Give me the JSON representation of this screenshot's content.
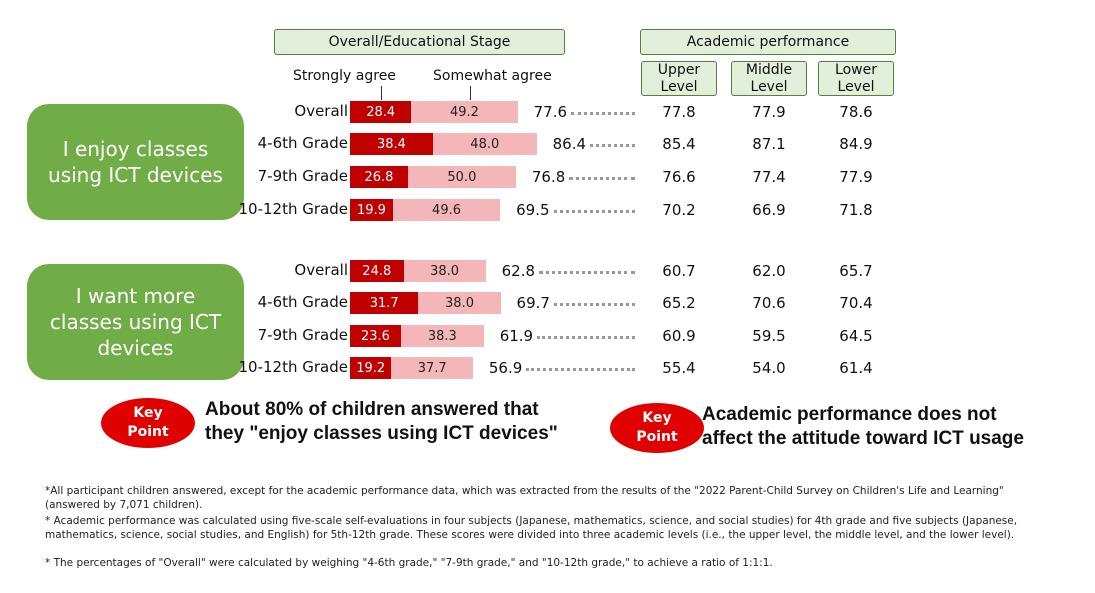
{
  "headers": {
    "stage": "Overall/Educational Stage",
    "academic": "Academic performance",
    "levels": [
      "Upper Level",
      "Middle Level",
      "Lower Level"
    ],
    "strongly": "Strongly agree",
    "somewhat": "Somewhat agree"
  },
  "groups": [
    {
      "title": "I enjoy classes using ICT devices",
      "rows": [
        {
          "label": "Overall",
          "strongly": "28.4",
          "somewhat": "49.2",
          "total": "77.6",
          "levels": [
            "77.8",
            "77.9",
            "78.6"
          ]
        },
        {
          "label": "4-6th Grade",
          "strongly": "38.4",
          "somewhat": "48.0",
          "total": "86.4",
          "levels": [
            "85.4",
            "87.1",
            "84.9"
          ]
        },
        {
          "label": "7-9th Grade",
          "strongly": "26.8",
          "somewhat": "50.0",
          "total": "76.8",
          "levels": [
            "76.6",
            "77.4",
            "77.9"
          ]
        },
        {
          "label": "10-12th Grade",
          "strongly": "19.9",
          "somewhat": "49.6",
          "total": "69.5",
          "levels": [
            "70.2",
            "66.9",
            "71.8"
          ]
        }
      ]
    },
    {
      "title": "I want more classes using ICT devices",
      "rows": [
        {
          "label": "Overall",
          "strongly": "24.8",
          "somewhat": "38.0",
          "total": "62.8",
          "levels": [
            "60.7",
            "62.0",
            "65.7"
          ]
        },
        {
          "label": "4-6th Grade",
          "strongly": "31.7",
          "somewhat": "38.0",
          "total": "69.7",
          "levels": [
            "65.2",
            "70.6",
            "70.4"
          ]
        },
        {
          "label": "7-9th Grade",
          "strongly": "23.6",
          "somewhat": "38.3",
          "total": "61.9",
          "levels": [
            "60.9",
            "59.5",
            "64.5"
          ]
        },
        {
          "label": "10-12th Grade",
          "strongly": "19.2",
          "somewhat": "37.7",
          "total": "56.9",
          "levels": [
            "55.4",
            "54.0",
            "61.4"
          ]
        }
      ]
    }
  ],
  "key_points": [
    {
      "badge": "Key Point",
      "text": "About 80% of children answered that\nthey \"enjoy classes using ICT devices\""
    },
    {
      "badge": "Key Point",
      "text": "Academic performance does not\naffect the attitude toward ICT usage"
    }
  ],
  "notes": [
    "*All participant children answered, except for the academic performance data, which was extracted from the results of the \"2022 Parent-Child Survey on Children's Life and Learning\" (answered by 7,071 children).",
    "* Academic performance was calculated using five-scale self-evaluations in four subjects (Japanese, mathematics, science, and social studies) for 4th grade and five subjects (Japanese, mathematics, science, social studies, and English) for 5th-12th grade. These scores were divided into three academic levels (i.e., the upper level, the middle level, and the lower level).",
    "* The percentages of \"Overall\" were calculated by weighing \"4-6th grade,\" \"7-9th grade,\" and \"10-12th grade,\" to achieve a ratio of 1:1:1."
  ]
}
